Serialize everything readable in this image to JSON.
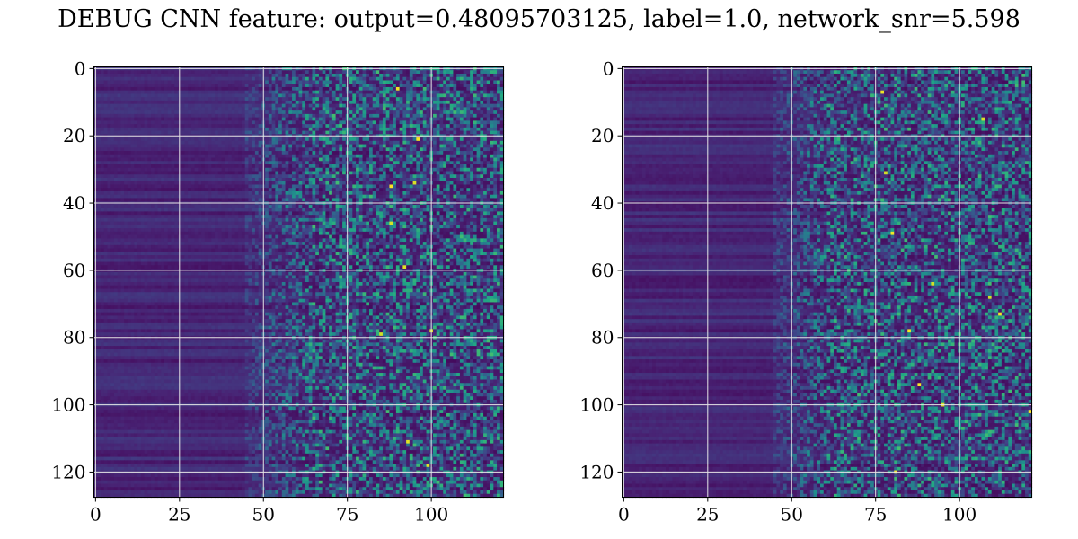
{
  "chart_data": [
    {
      "type": "heatmap",
      "title": "DEBUG CNN feature: output=0.48095703125, label=1.0, network_snr=5.598",
      "panels": [
        {
          "id": "left",
          "rows": 128,
          "cols": 122,
          "xlim": [
            0,
            122
          ],
          "ylim": [
            128,
            0
          ],
          "xticks": [
            0,
            25,
            50,
            75,
            100
          ],
          "yticks": [
            0,
            20,
            40,
            60,
            80,
            100,
            120
          ],
          "grid": true,
          "colormap": "viridis",
          "structure": {
            "smooth_until_col": 45,
            "noisy_from_col": 65,
            "hotspots": [
              [
                90,
                6
              ],
              [
                85,
                79
              ],
              [
                99,
                118
              ],
              [
                100,
                78
              ],
              [
                93,
                111
              ],
              [
                88,
                35
              ],
              [
                96,
                21
              ],
              [
                95,
                34
              ],
              [
                88,
                46
              ],
              [
                92,
                59
              ]
            ]
          }
        },
        {
          "id": "right",
          "rows": 128,
          "cols": 122,
          "xlim": [
            0,
            122
          ],
          "ylim": [
            128,
            0
          ],
          "xticks": [
            0,
            25,
            50,
            75,
            100
          ],
          "yticks": [
            0,
            20,
            40,
            60,
            80,
            100,
            120
          ],
          "grid": true,
          "colormap": "viridis",
          "structure": {
            "smooth_until_col": 45,
            "noisy_from_col": 62,
            "hotspots": [
              [
                107,
                15
              ],
              [
                78,
                31
              ],
              [
                80,
                49
              ],
              [
                92,
                64
              ],
              [
                85,
                78
              ],
              [
                109,
                68
              ],
              [
                112,
                73
              ],
              [
                121,
                102
              ],
              [
                77,
                7
              ],
              [
                95,
                100
              ],
              [
                81,
                120
              ],
              [
                88,
                94
              ]
            ]
          }
        }
      ]
    }
  ],
  "colors": {
    "viridis_low": "#440154",
    "viridis_mid": "#21918c",
    "viridis_high": "#fde725",
    "grid": "#e6e6e6"
  }
}
